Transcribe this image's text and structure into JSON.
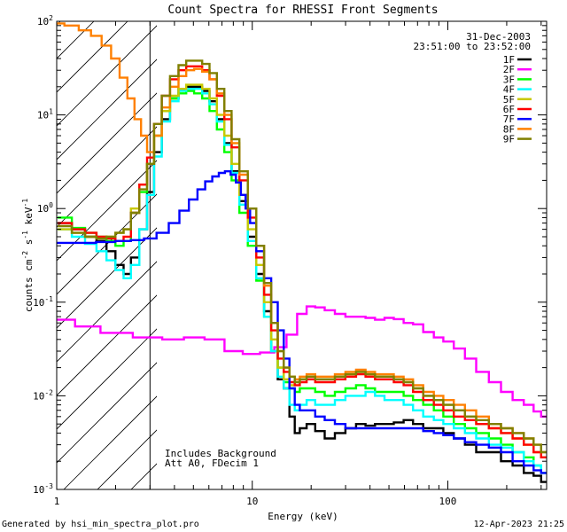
{
  "chart_data": {
    "type": "line",
    "title": "Count Spectra for RHESSI Front Segments",
    "xlabel": "Energy (keV)",
    "ylabel": {
      "main": "counts cm",
      "exp1": "-2",
      "mid": " s",
      "exp2": "-1",
      "unit": " keV",
      "exp3": "-1"
    },
    "xscale": "log",
    "yscale": "log",
    "xlim": [
      1,
      320
    ],
    "ylim": [
      0.001,
      100
    ],
    "x_ticks": [
      {
        "value": 1,
        "label": "1"
      },
      {
        "value": 10,
        "label": "10"
      },
      {
        "value": 100,
        "label": "100"
      }
    ],
    "y_ticks": [
      {
        "value": 100,
        "base": "10",
        "exp": "2"
      },
      {
        "value": 10,
        "base": "10",
        "exp": "1"
      },
      {
        "value": 1,
        "base": "10",
        "exp": "0"
      },
      {
        "value": 0.1,
        "base": "10",
        "exp": "-1"
      },
      {
        "value": 0.01,
        "base": "10",
        "exp": "-2"
      },
      {
        "value": 0.001,
        "base": "10",
        "exp": "-3"
      }
    ],
    "date": "31-Dec-2003",
    "time_range": "23:51:00 to 23:52:00",
    "shaded_region": {
      "from": 1,
      "to": 3
    },
    "annotations": [
      "Includes Background",
      "Att A0, FDecim 1"
    ],
    "footer_left": "Generated by hsi_min_spectra_plot.pro",
    "footer_right": "12-Apr-2023 21:25",
    "series": [
      {
        "name": "1F",
        "color": "#000000",
        "x": [
          1.1,
          1.3,
          1.5,
          1.7,
          1.9,
          2.1,
          2.3,
          2.5,
          2.8,
          3.0,
          3.3,
          3.6,
          4.0,
          4.4,
          4.8,
          5.3,
          5.8,
          6.3,
          6.9,
          7.5,
          8.2,
          9.0,
          10.0,
          11.0,
          12.0,
          13.0,
          14.0,
          15.0,
          16.0,
          17.0,
          18.0,
          20.0,
          22.0,
          25.0,
          28.0,
          32.0,
          36.0,
          40.0,
          45.0,
          50.0,
          56.0,
          63.0,
          70.0,
          80.0,
          90.0,
          100.0,
          115.0,
          130.0,
          150.0,
          175.0,
          200.0,
          230.0,
          260.0,
          290.0,
          310.0
        ],
        "y": [
          0.7,
          0.6,
          0.5,
          0.45,
          0.35,
          0.25,
          0.2,
          0.3,
          0.6,
          1.5,
          4.0,
          9.0,
          15.0,
          19.0,
          20.0,
          20.0,
          18.0,
          14.0,
          9.0,
          5.0,
          2.5,
          1.2,
          0.5,
          0.2,
          0.08,
          0.03,
          0.015,
          0.012,
          0.006,
          0.004,
          0.0045,
          0.005,
          0.0042,
          0.0035,
          0.004,
          0.0045,
          0.005,
          0.0048,
          0.005,
          0.005,
          0.0052,
          0.0055,
          0.005,
          0.0045,
          0.0045,
          0.004,
          0.0035,
          0.003,
          0.0025,
          0.0025,
          0.002,
          0.0018,
          0.0015,
          0.0014,
          0.0012
        ]
      },
      {
        "name": "2F",
        "color": "#ff00ff",
        "x": [
          1.1,
          1.4,
          2.0,
          3.0,
          4.0,
          5.0,
          6.5,
          8.0,
          10.0,
          12.0,
          14.0,
          16.0,
          18.0,
          20.0,
          22.0,
          25.0,
          28.0,
          32.0,
          36.0,
          40.0,
          45.0,
          50.0,
          56.0,
          63.0,
          70.0,
          80.0,
          90.0,
          100.0,
          115.0,
          130.0,
          150.0,
          175.0,
          200.0,
          230.0,
          260.0,
          290.0,
          310.0
        ],
        "y": [
          0.065,
          0.055,
          0.047,
          0.042,
          0.04,
          0.042,
          0.04,
          0.03,
          0.028,
          0.029,
          0.033,
          0.045,
          0.075,
          0.09,
          0.088,
          0.082,
          0.075,
          0.07,
          0.07,
          0.068,
          0.065,
          0.068,
          0.066,
          0.06,
          0.058,
          0.048,
          0.042,
          0.038,
          0.032,
          0.025,
          0.018,
          0.014,
          0.011,
          0.009,
          0.008,
          0.0068,
          0.006
        ]
      },
      {
        "name": "3F",
        "color": "#00ff00",
        "x": [
          1.1,
          1.3,
          1.5,
          1.7,
          1.9,
          2.1,
          2.3,
          2.5,
          2.8,
          3.0,
          3.3,
          3.6,
          4.0,
          4.4,
          4.8,
          5.3,
          5.8,
          6.3,
          6.9,
          7.5,
          8.2,
          9.0,
          10.0,
          11.0,
          12.0,
          13.0,
          14.0,
          15.0,
          16.0,
          17.0,
          18.0,
          20.0,
          22.0,
          25.0,
          28.0,
          32.0,
          36.0,
          40.0,
          45.0,
          50.0,
          56.0,
          63.0,
          70.0,
          80.0,
          90.0,
          100.0,
          115.0,
          130.0,
          150.0,
          175.0,
          200.0,
          230.0,
          260.0,
          290.0,
          310.0
        ],
        "y": [
          0.8,
          0.62,
          0.55,
          0.5,
          0.45,
          0.4,
          0.45,
          0.9,
          1.5,
          3.0,
          6.0,
          11.0,
          15.0,
          17.0,
          18.0,
          17.0,
          15.0,
          11.0,
          7.0,
          4.0,
          2.0,
          0.9,
          0.4,
          0.17,
          0.07,
          0.03,
          0.02,
          0.014,
          0.012,
          0.011,
          0.012,
          0.012,
          0.011,
          0.01,
          0.011,
          0.012,
          0.013,
          0.012,
          0.011,
          0.011,
          0.011,
          0.01,
          0.009,
          0.008,
          0.007,
          0.006,
          0.005,
          0.0045,
          0.004,
          0.0035,
          0.003,
          0.0025,
          0.0022,
          0.0018,
          0.0015
        ]
      },
      {
        "name": "4F",
        "color": "#00ffff",
        "x": [
          1.1,
          1.3,
          1.5,
          1.7,
          1.9,
          2.1,
          2.3,
          2.5,
          2.8,
          3.0,
          3.3,
          3.6,
          4.0,
          4.4,
          4.8,
          5.3,
          5.8,
          6.3,
          6.9,
          7.5,
          8.2,
          9.0,
          10.0,
          11.0,
          12.0,
          13.0,
          14.0,
          15.0,
          16.0,
          17.0,
          18.0,
          20.0,
          22.0,
          25.0,
          28.0,
          32.0,
          36.0,
          40.0,
          45.0,
          50.0,
          56.0,
          63.0,
          70.0,
          80.0,
          90.0,
          100.0,
          115.0,
          130.0,
          150.0,
          175.0,
          200.0,
          230.0,
          260.0,
          290.0,
          310.0
        ],
        "y": [
          0.6,
          0.5,
          0.42,
          0.35,
          0.28,
          0.22,
          0.18,
          0.25,
          0.6,
          1.4,
          3.6,
          8.5,
          14.0,
          18.0,
          19.0,
          19.0,
          17.0,
          13.0,
          8.5,
          4.8,
          2.4,
          1.1,
          0.45,
          0.18,
          0.07,
          0.03,
          0.016,
          0.012,
          0.008,
          0.007,
          0.008,
          0.009,
          0.008,
          0.008,
          0.009,
          0.01,
          0.01,
          0.011,
          0.01,
          0.009,
          0.009,
          0.008,
          0.007,
          0.006,
          0.0055,
          0.005,
          0.0045,
          0.004,
          0.0035,
          0.003,
          0.0028,
          0.0025,
          0.002,
          0.0018,
          0.0015
        ]
      },
      {
        "name": "5F",
        "color": "#c8c800",
        "x": [
          1.1,
          1.3,
          1.5,
          1.7,
          1.9,
          2.1,
          2.3,
          2.5,
          2.8,
          3.0,
          3.3,
          3.6,
          4.0,
          4.4,
          4.8,
          5.3,
          5.8,
          6.3,
          6.9,
          7.5,
          8.2,
          9.0,
          10.0,
          11.0,
          12.0,
          13.0,
          14.0,
          15.0,
          16.0,
          17.0,
          18.0,
          20.0,
          22.0,
          25.0,
          28.0,
          32.0,
          36.0,
          40.0,
          45.0,
          50.0,
          56.0,
          63.0,
          70.0,
          80.0,
          90.0,
          100.0,
          115.0,
          130.0,
          150.0,
          175.0,
          200.0,
          230.0,
          260.0,
          290.0,
          310.0
        ],
        "y": [
          0.6,
          0.55,
          0.5,
          0.48,
          0.5,
          0.55,
          0.6,
          1.0,
          1.8,
          3.0,
          6.0,
          11.0,
          16.0,
          19.0,
          21.0,
          21.0,
          19.0,
          15.0,
          10.0,
          6.0,
          3.0,
          1.4,
          0.6,
          0.25,
          0.1,
          0.04,
          0.02,
          0.015,
          0.013,
          0.014,
          0.015,
          0.016,
          0.015,
          0.015,
          0.016,
          0.017,
          0.018,
          0.017,
          0.016,
          0.016,
          0.015,
          0.014,
          0.012,
          0.01,
          0.009,
          0.008,
          0.007,
          0.006,
          0.005,
          0.0045,
          0.004,
          0.0035,
          0.003,
          0.0025,
          0.0022
        ]
      },
      {
        "name": "6F",
        "color": "#ff0000",
        "x": [
          1.1,
          1.3,
          1.5,
          1.7,
          1.9,
          2.1,
          2.3,
          2.5,
          2.8,
          3.0,
          3.3,
          3.6,
          4.0,
          4.4,
          4.8,
          5.3,
          5.8,
          6.3,
          6.9,
          7.5,
          8.2,
          9.0,
          10.0,
          11.0,
          12.0,
          13.0,
          14.0,
          15.0,
          16.0,
          17.0,
          18.0,
          20.0,
          22.0,
          25.0,
          28.0,
          32.0,
          36.0,
          40.0,
          45.0,
          50.0,
          56.0,
          63.0,
          70.0,
          80.0,
          90.0,
          100.0,
          115.0,
          130.0,
          150.0,
          175.0,
          200.0,
          230.0,
          260.0,
          290.0,
          310.0
        ],
        "y": [
          0.7,
          0.6,
          0.55,
          0.5,
          0.48,
          0.45,
          0.5,
          0.9,
          1.8,
          3.5,
          8.0,
          16.0,
          24.0,
          30.0,
          33.0,
          33.0,
          30.0,
          24.0,
          16.0,
          9.0,
          4.5,
          2.0,
          0.8,
          0.3,
          0.12,
          0.05,
          0.025,
          0.018,
          0.014,
          0.013,
          0.014,
          0.015,
          0.014,
          0.014,
          0.015,
          0.016,
          0.017,
          0.016,
          0.015,
          0.015,
          0.014,
          0.013,
          0.011,
          0.009,
          0.008,
          0.007,
          0.006,
          0.0055,
          0.005,
          0.0045,
          0.004,
          0.0035,
          0.003,
          0.0025,
          0.0022
        ]
      },
      {
        "name": "7F",
        "color": "#0000ff",
        "x": [
          1.1,
          1.4,
          1.8,
          2.2,
          2.6,
          3.0,
          3.5,
          4.0,
          4.5,
          5.0,
          5.5,
          6.0,
          6.5,
          7.0,
          7.5,
          8.0,
          8.5,
          9.0,
          9.5,
          10.0,
          11.0,
          12.0,
          13.0,
          14.0,
          15.0,
          16.0,
          17.0,
          18.0,
          20.0,
          22.0,
          25.0,
          28.0,
          32.0,
          36.0,
          40.0,
          45.0,
          50.0,
          56.0,
          63.0,
          70.0,
          80.0,
          90.0,
          100.0,
          115.0,
          130.0,
          150.0,
          175.0,
          200.0,
          230.0,
          260.0,
          290.0,
          310.0
        ],
        "y": [
          0.43,
          0.43,
          0.44,
          0.45,
          0.46,
          0.48,
          0.55,
          0.7,
          0.95,
          1.25,
          1.6,
          1.95,
          2.2,
          2.4,
          2.5,
          2.3,
          1.9,
          1.4,
          1.0,
          0.7,
          0.35,
          0.18,
          0.1,
          0.05,
          0.025,
          0.012,
          0.008,
          0.007,
          0.007,
          0.006,
          0.0055,
          0.005,
          0.0045,
          0.0045,
          0.0045,
          0.0045,
          0.0045,
          0.0045,
          0.0045,
          0.0045,
          0.0042,
          0.004,
          0.0038,
          0.0035,
          0.0032,
          0.003,
          0.0028,
          0.0025,
          0.002,
          0.0018,
          0.0016,
          0.0015
        ]
      },
      {
        "name": "8F",
        "color": "#ff8000",
        "x": [
          1.0,
          1.2,
          1.4,
          1.6,
          1.8,
          2.0,
          2.2,
          2.4,
          2.6,
          2.8,
          3.0,
          3.3,
          3.6,
          4.0,
          4.4,
          4.8,
          5.3,
          5.8,
          6.3,
          6.9,
          7.5,
          8.2,
          9.0,
          10.0,
          11.0,
          12.0,
          13.0,
          14.0,
          15.0,
          16.0,
          17.0,
          18.0,
          20.0,
          22.0,
          25.0,
          28.0,
          32.0,
          36.0,
          40.0,
          45.0,
          50.0,
          56.0,
          63.0,
          70.0,
          80.0,
          90.0,
          100.0,
          115.0,
          130.0,
          150.0,
          175.0,
          200.0,
          230.0,
          260.0,
          290.0,
          310.0
        ],
        "y": [
          95.0,
          90.0,
          80.0,
          70.0,
          55.0,
          40.0,
          25.0,
          15.0,
          9.0,
          6.0,
          4.0,
          6.0,
          12.0,
          20.0,
          26.0,
          30.0,
          31.0,
          29.0,
          24.0,
          17.0,
          10.0,
          5.0,
          2.3,
          1.0,
          0.4,
          0.15,
          0.06,
          0.03,
          0.02,
          0.016,
          0.015,
          0.016,
          0.017,
          0.016,
          0.016,
          0.017,
          0.018,
          0.019,
          0.018,
          0.017,
          0.017,
          0.016,
          0.015,
          0.013,
          0.011,
          0.01,
          0.009,
          0.008,
          0.007,
          0.006,
          0.005,
          0.0045,
          0.004,
          0.0035,
          0.003,
          0.0025
        ]
      },
      {
        "name": "9F",
        "color": "#808000",
        "x": [
          1.1,
          1.3,
          1.5,
          1.7,
          1.9,
          2.1,
          2.3,
          2.5,
          2.8,
          3.0,
          3.3,
          3.6,
          4.0,
          4.4,
          4.8,
          5.3,
          5.8,
          6.3,
          6.9,
          7.5,
          8.2,
          9.0,
          10.0,
          11.0,
          12.0,
          13.0,
          14.0,
          15.0,
          16.0,
          17.0,
          18.0,
          20.0,
          22.0,
          25.0,
          28.0,
          32.0,
          36.0,
          40.0,
          45.0,
          50.0,
          56.0,
          63.0,
          70.0,
          80.0,
          90.0,
          100.0,
          115.0,
          130.0,
          150.0,
          175.0,
          200.0,
          230.0,
          260.0,
          290.0,
          310.0
        ],
        "y": [
          0.65,
          0.55,
          0.5,
          0.48,
          0.5,
          0.55,
          0.6,
          0.9,
          1.6,
          3.0,
          8.0,
          16.0,
          26.0,
          34.0,
          38.0,
          38.0,
          35.0,
          28.0,
          19.0,
          11.0,
          5.5,
          2.5,
          1.0,
          0.4,
          0.16,
          0.06,
          0.03,
          0.02,
          0.016,
          0.014,
          0.015,
          0.016,
          0.015,
          0.015,
          0.016,
          0.017,
          0.018,
          0.017,
          0.016,
          0.016,
          0.015,
          0.014,
          0.012,
          0.01,
          0.009,
          0.008,
          0.007,
          0.006,
          0.0055,
          0.005,
          0.0045,
          0.004,
          0.0035,
          0.003,
          0.0025
        ]
      }
    ]
  }
}
